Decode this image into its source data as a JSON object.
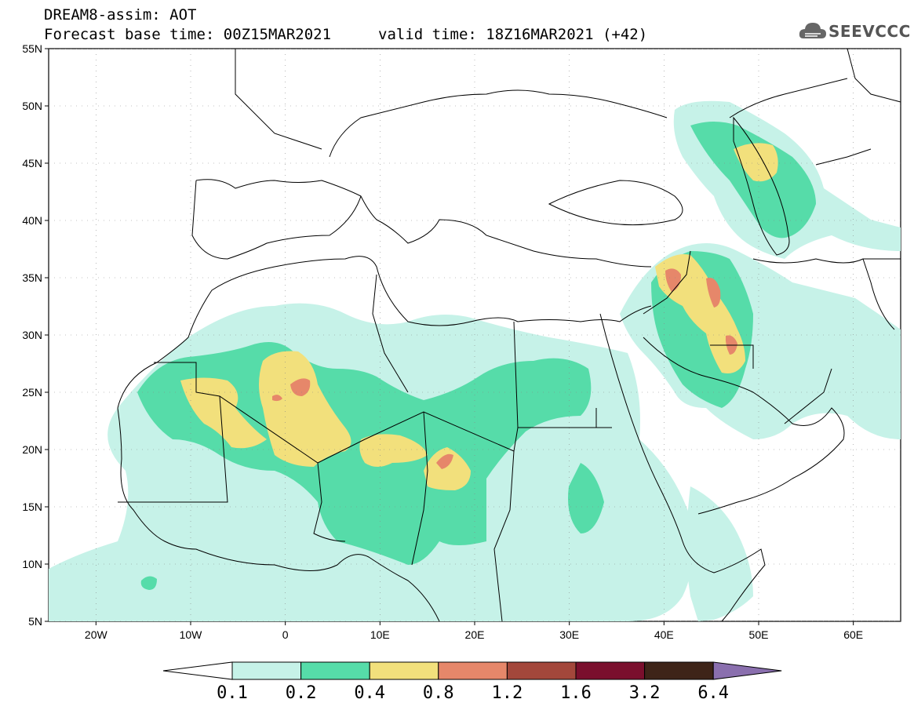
{
  "header": {
    "title": "DREAM8-assim: AOT",
    "base_time": "Forecast base time: 00Z15MAR2021",
    "valid_time": "valid time: 18Z16MAR2021 (+42)",
    "logo": "SEEVCCC"
  },
  "map": {
    "lat_labels": [
      "55N",
      "50N",
      "45N",
      "40N",
      "35N",
      "30N",
      "25N",
      "20N",
      "15N",
      "10N",
      "5N"
    ],
    "lon_labels": [
      "20W",
      "10W",
      "0",
      "10E",
      "20E",
      "30E",
      "40E",
      "50E",
      "60E"
    ],
    "colors": {
      "c01": "#c6f2e8",
      "c02": "#56dca9",
      "c04": "#f2e07c",
      "c08": "#e6876a",
      "c12": "#a3473b",
      "c16": "#7a0f2d",
      "c32": "#3e2418",
      "c64": "#8a6fae",
      "border": "#000000"
    }
  },
  "colorbar": {
    "labels": [
      "0.1",
      "0.2",
      "0.4",
      "0.8",
      "1.2",
      "1.6",
      "3.2",
      "6.4"
    ],
    "colors": [
      "#ffffff",
      "#c6f2e8",
      "#56dca9",
      "#f2e07c",
      "#e6876a",
      "#a3473b",
      "#7a0f2d",
      "#3e2418",
      "#8a6fae"
    ]
  }
}
